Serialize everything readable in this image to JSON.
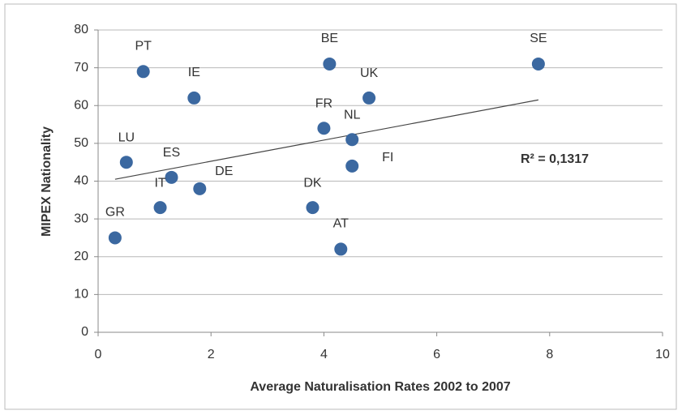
{
  "chart_data": {
    "type": "scatter",
    "x_label": "Average Naturalisation Rates 2002 to 2007",
    "y_label": "MIPEX Nationality",
    "annotation": "R² = 0,1317",
    "series": [
      {
        "color": "#3b68a0",
        "labels": [
          "PT",
          "IE",
          "BE",
          "SE",
          "UK",
          "FR",
          "NL",
          "LU",
          "ES",
          "FI",
          "DE",
          "IT",
          "DK",
          "GR",
          "AT"
        ],
        "x": [
          0.8,
          1.7,
          4.1,
          7.8,
          4.8,
          4.0,
          4.5,
          0.5,
          1.3,
          4.5,
          1.8,
          1.1,
          3.8,
          0.3,
          4.3
        ],
        "values": [
          69,
          62,
          71,
          71,
          62,
          54,
          51,
          45,
          41,
          44,
          38,
          33,
          33,
          25,
          22
        ]
      }
    ],
    "trendline": {
      "x": [
        0.3,
        7.8
      ],
      "values": [
        40.5,
        61.5
      ],
      "color": "#444444"
    },
    "xlim": [
      0,
      10
    ],
    "xticks": [
      0,
      2,
      4,
      6,
      8,
      10
    ],
    "ylim": [
      0,
      80
    ],
    "yticks": [
      0,
      10,
      20,
      30,
      40,
      50,
      60,
      70,
      80
    ],
    "grid": true
  }
}
